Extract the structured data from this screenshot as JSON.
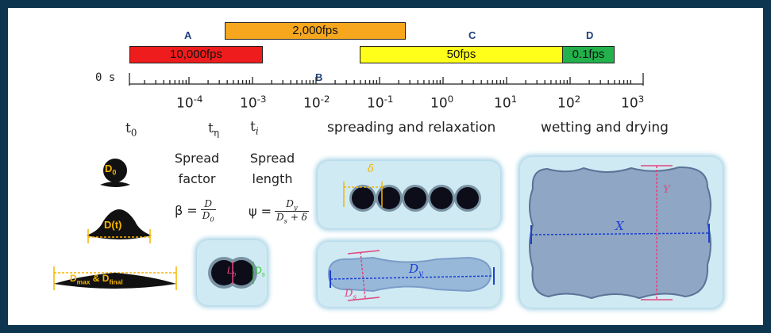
{
  "timeline": {
    "origin_label": "0 s",
    "ticks": [
      {
        "base": "10",
        "exp": "-4"
      },
      {
        "base": "10",
        "exp": "-3"
      },
      {
        "base": "10",
        "exp": "-2"
      },
      {
        "base": "10",
        "exp": "-1"
      },
      {
        "base": "10",
        "exp": "0"
      },
      {
        "base": "10",
        "exp": "1"
      },
      {
        "base": "10",
        "exp": "2"
      },
      {
        "base": "10",
        "exp": "3"
      }
    ]
  },
  "phases": {
    "a": "A",
    "b": "B",
    "c": "C",
    "d": "D"
  },
  "frame_rates": [
    {
      "label": "10,000fps",
      "color": "#ee1c1c"
    },
    {
      "label": "2,000fps",
      "color": "#f7a71e"
    },
    {
      "label": "50fps",
      "color": "#ffff1a"
    },
    {
      "label": "0.1fps",
      "color": "#22b14c"
    }
  ],
  "events": {
    "t0": "t",
    "t0_sub": "0",
    "teta": "t",
    "teta_sub": "η",
    "ti": "t",
    "ti_sub": "i",
    "spreading": "spreading and relaxation",
    "wetting": "wetting and drying"
  },
  "droplets": {
    "d0": "D",
    "d0_sub": "0",
    "dt": "D(t)",
    "dmax": "D",
    "dmax_sub": "max",
    "amp": " & D",
    "dfinal_sub": "final"
  },
  "formulas": {
    "beta_title_1": "Spread",
    "beta_title_2": "factor",
    "beta_lhs": "β =",
    "beta_num": "D",
    "beta_den": "D",
    "beta_den_sub": "0",
    "psi_title_1": "Spread",
    "psi_title_2": "length",
    "psi_lhs": "ψ =",
    "psi_num": "D",
    "psi_num_sub": "y",
    "psi_den_a": "D",
    "psi_den_a_sub": "s",
    "psi_den_b": "+ δ"
  },
  "labels": {
    "lb": "L",
    "lb_sub": "b",
    "ds": "D",
    "ds_sub": "s",
    "delta": "δ",
    "dy": "D",
    "dy_sub": "y",
    "ds2": "D",
    "ds2_sub": "s",
    "x": "X",
    "y": "Y"
  },
  "colors": {
    "background": "#0d3550",
    "panel": "#cfeaf3",
    "accent_blue": "#1a3fd1",
    "accent_pink": "#e0467e",
    "accent_yellow": "#f5b400"
  }
}
